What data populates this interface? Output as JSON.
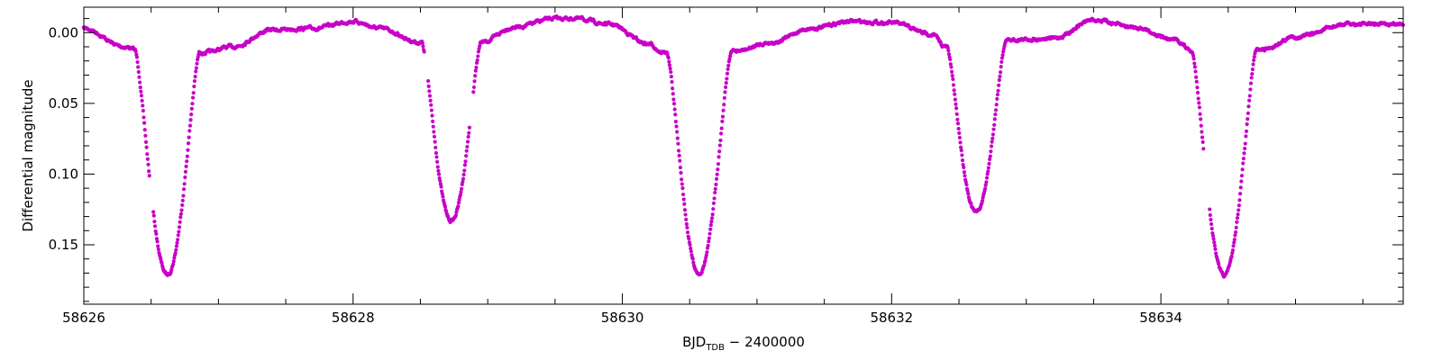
{
  "chart_data": {
    "type": "scatter",
    "title": "",
    "xlabel": {
      "main": "BJD",
      "subscript": "TDB",
      "suffix": " − 2400000"
    },
    "ylabel": "Differential magnitude",
    "xlim": [
      58626.0,
      58635.8
    ],
    "ylim": [
      -0.018,
      0.192
    ],
    "y_inverted": true,
    "x_ticks": [
      58626,
      58628,
      58630,
      58632,
      58634
    ],
    "x_tick_labels": [
      "58626",
      "58628",
      "58630",
      "58632",
      "58634"
    ],
    "y_ticks": [
      0.0,
      0.05,
      0.1,
      0.15
    ],
    "y_tick_labels": [
      "0.00",
      "0.05",
      "0.10",
      "0.15"
    ],
    "grid": false,
    "legend": "none",
    "series": [
      {
        "color": "#c800c8",
        "eclipses": [
          {
            "center": 58626.62,
            "depth": 0.171,
            "kind": "primary"
          },
          {
            "center": 58628.73,
            "depth": 0.133,
            "kind": "secondary"
          },
          {
            "center": 58630.57,
            "depth": 0.17,
            "kind": "primary"
          },
          {
            "center": 58632.63,
            "depth": 0.127,
            "kind": "secondary"
          },
          {
            "center": 58634.47,
            "depth": 0.172,
            "kind": "primary"
          }
        ],
        "baseline": [
          [
            58626.0,
            -0.003
          ],
          [
            58626.3,
            0.01
          ],
          [
            58626.45,
            0.014
          ],
          [
            58626.9,
            0.014
          ],
          [
            58627.1,
            0.01
          ],
          [
            58627.4,
            -0.002
          ],
          [
            58627.7,
            -0.003
          ],
          [
            58628.0,
            -0.008
          ],
          [
            58628.2,
            -0.003
          ],
          [
            58628.5,
            0.007
          ],
          [
            58628.95,
            0.007
          ],
          [
            58629.2,
            -0.004
          ],
          [
            58629.5,
            -0.01
          ],
          [
            58629.65,
            -0.01
          ],
          [
            58629.9,
            -0.006
          ],
          [
            58630.2,
            0.008
          ],
          [
            58630.3,
            0.014
          ],
          [
            58630.85,
            0.013
          ],
          [
            58631.1,
            0.007
          ],
          [
            58631.4,
            -0.003
          ],
          [
            58631.7,
            -0.008
          ],
          [
            58632.0,
            -0.007
          ],
          [
            58632.3,
            0.001
          ],
          [
            58632.4,
            0.01
          ],
          [
            58632.9,
            0.005
          ],
          [
            58633.2,
            0.004
          ],
          [
            58633.5,
            -0.009
          ],
          [
            58633.8,
            -0.004
          ],
          [
            58634.1,
            0.005
          ],
          [
            58634.25,
            0.014
          ],
          [
            58634.75,
            0.012
          ],
          [
            58635.0,
            0.003
          ],
          [
            58635.4,
            -0.006
          ],
          [
            58635.8,
            -0.006
          ]
        ],
        "gaps": [
          [
            58626.49,
            58626.515
          ],
          [
            58628.53,
            58628.555
          ],
          [
            58628.865,
            58628.89
          ],
          [
            58634.32,
            58634.36
          ]
        ]
      }
    ]
  }
}
